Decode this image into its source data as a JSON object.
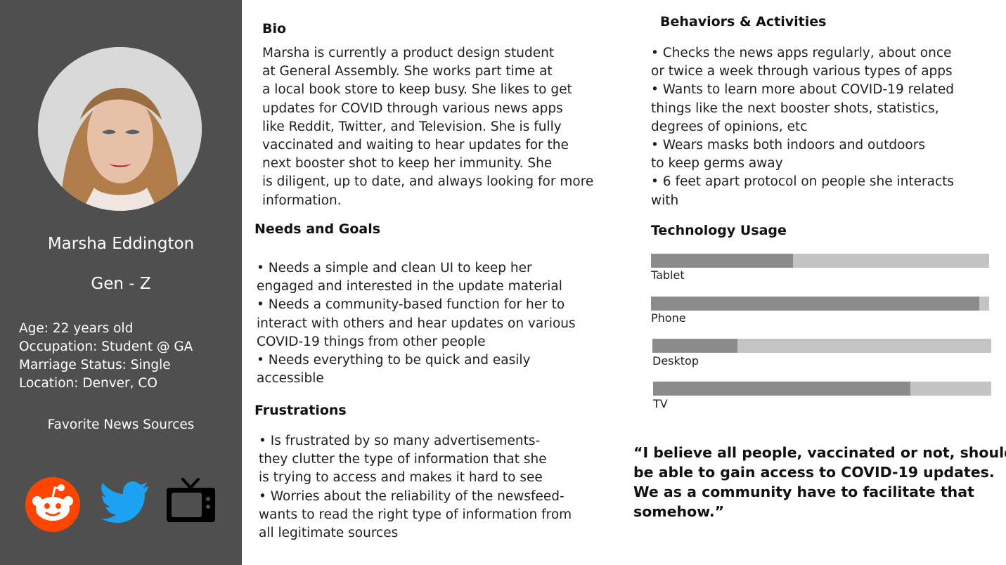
{
  "profile": {
    "name": "Marsha Eddington",
    "generation": "Gen - Z",
    "facts": [
      "Age: 22 years old",
      "Occupation: Student @ GA",
      "Marriage Status: Single",
      "Location: Denver, CO"
    ],
    "favorite_sources_title": "Favorite News Sources",
    "favorite_sources": [
      "reddit-icon",
      "twitter-icon",
      "tv-icon"
    ]
  },
  "bio": {
    "title": "Bio",
    "lines": [
      "Marsha is currently a product design student",
      "at General Assembly. She works part time at",
      "a local book store to keep busy. She likes to get",
      "updates for COVID through various news apps",
      "like Reddit, Twitter, and Television. She is fully",
      "vaccinated and waiting to hear updates for the",
      "next booster shot to keep her immunity. She",
      "is diligent, up to date, and always looking for more",
      "information."
    ]
  },
  "needs": {
    "title": "Needs and Goals",
    "lines": [
      "• Needs a simple and clean UI to keep her",
      "engaged and interested in the update material",
      "• Needs a community-based function for her to",
      "interact with others and hear updates on various",
      "COVID-19 things from other people",
      "• Needs everything to be quick and easily",
      "accessible"
    ]
  },
  "frustrations": {
    "title": "Frustrations",
    "lines": [
      "• Is frustrated by so many advertisements-",
      "they clutter the type of information that she",
      "is trying to access and makes it hard to see",
      "• Worries about the reliability of the newsfeed-",
      "wants to read the right type of information from",
      "all legitimate sources"
    ]
  },
  "behaviors": {
    "title": "Behaviors & Activities",
    "lines": [
      "• Checks the news apps regularly, about once",
      "or twice a week through various types of apps",
      "• Wants to learn more about COVID-19 related",
      "things like the next booster shots, statistics,",
      "degrees of opinions, etc",
      "• Wears masks both indoors and outdoors",
      "to keep germs away",
      "• 6 feet apart protocol on people she interacts",
      "with"
    ]
  },
  "technology": {
    "title": "Technology Usage",
    "items": [
      {
        "label": "Tablet",
        "value": 0.42
      },
      {
        "label": "Phone",
        "value": 0.97
      },
      {
        "label": "Desktop",
        "value": 0.25
      },
      {
        "label": "TV",
        "value": 0.76
      }
    ]
  },
  "quote": {
    "text": "“I believe all people, vaccinated or not, should\nbe able to gain access to COVID-19 updates.\nWe as a community have to facilitate that\nsomehow.”"
  }
}
